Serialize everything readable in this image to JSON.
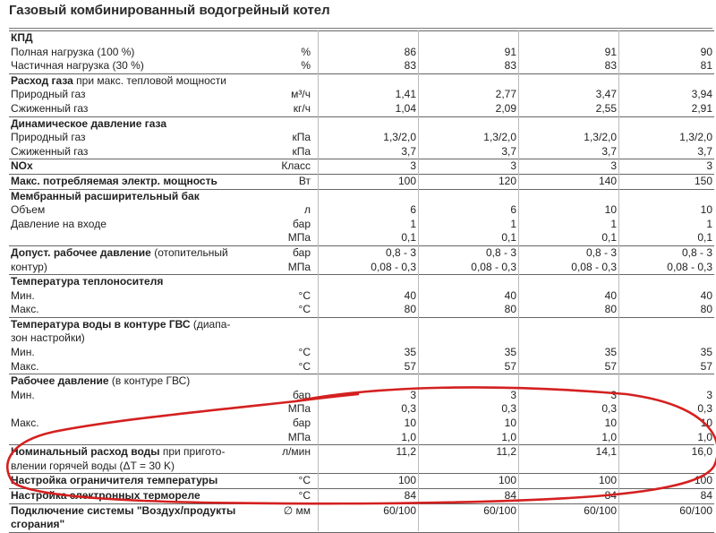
{
  "title": "Газовый комбинированный водогрейный котел",
  "sections": [
    {
      "rows": [
        {
          "label": "КПД",
          "bold": true
        },
        {
          "label": "Полная нагрузка (100 %)",
          "unit": "%",
          "values": [
            "86",
            "91",
            "91",
            "90"
          ]
        },
        {
          "label": "Частичная нагрузка (30 %)",
          "unit": "%",
          "values": [
            "83",
            "83",
            "83",
            "81"
          ]
        }
      ]
    },
    {
      "rows": [
        {
          "label": "Расход газа",
          "label_suffix": " при макс. тепловой мощности",
          "bold": true
        },
        {
          "label": "Природный газ",
          "unit": "м³/ч",
          "values": [
            "1,41",
            "2,77",
            "3,47",
            "3,94"
          ]
        },
        {
          "label": "Сжиженный газ",
          "unit": "кг/ч",
          "values": [
            "1,04",
            "2,09",
            "2,55",
            "2,91"
          ]
        }
      ]
    },
    {
      "rows": [
        {
          "label": "Динамическое давление газа",
          "bold": true
        },
        {
          "label": "Природный газ",
          "unit": "кПа",
          "values": [
            "1,3/2,0",
            "1,3/2,0",
            "1,3/2,0",
            "1,3/2,0"
          ]
        },
        {
          "label": "Сжиженный газ",
          "unit": "кПа",
          "values": [
            "3,7",
            "3,7",
            "3,7",
            "3,7"
          ]
        }
      ]
    },
    {
      "rows": [
        {
          "label": "NOx",
          "bold": true,
          "unit": "Класс",
          "values": [
            "3",
            "3",
            "3",
            "3"
          ]
        }
      ]
    },
    {
      "rows": [
        {
          "label": "Макс. потребляемая электр. мощность",
          "bold": true,
          "unit": "Вт",
          "values": [
            "100",
            "120",
            "140",
            "150"
          ]
        }
      ]
    },
    {
      "rows": [
        {
          "label": "Мембранный расширительный бак",
          "bold": true
        },
        {
          "label": "Объем",
          "unit": "л",
          "values": [
            "6",
            "6",
            "10",
            "10"
          ]
        },
        {
          "label": "Давление на входе",
          "unit": "бар",
          "values": [
            "1",
            "1",
            "1",
            "1"
          ]
        },
        {
          "label": "",
          "unit": "МПа",
          "values": [
            "0,1",
            "0,1",
            "0,1",
            "0,1"
          ]
        }
      ]
    },
    {
      "rows": [
        {
          "label": "Допуст. рабочее давление",
          "label_suffix": " (отопительный",
          "bold": true,
          "unit": "бар",
          "values": [
            "0,8 - 3",
            "0,8 - 3",
            "0,8 - 3",
            "0,8 - 3"
          ]
        },
        {
          "label": "контур)",
          "unit": "МПа",
          "values": [
            "0,08 - 0,3",
            "0,08 - 0,3",
            "0,08 - 0,3",
            "0,08 - 0,3"
          ]
        }
      ]
    },
    {
      "rows": [
        {
          "label": "Температура теплоносителя",
          "bold": true
        },
        {
          "label": "Мин.",
          "unit": "°C",
          "values": [
            "40",
            "40",
            "40",
            "40"
          ]
        },
        {
          "label": "Макс.",
          "unit": "°C",
          "values": [
            "80",
            "80",
            "80",
            "80"
          ]
        }
      ]
    },
    {
      "rows": [
        {
          "label": "Температура воды в контуре ГВС",
          "label_suffix": " (диапа-",
          "bold": true
        },
        {
          "label": "зон настройки)"
        },
        {
          "label": "Мин.",
          "unit": "°C",
          "values": [
            "35",
            "35",
            "35",
            "35"
          ]
        },
        {
          "label": "Макс.",
          "unit": "°C",
          "values": [
            "57",
            "57",
            "57",
            "57"
          ]
        }
      ]
    },
    {
      "rows": [
        {
          "label": "Рабочее давление",
          "label_suffix": " (в контуре ГВС)",
          "bold": true
        },
        {
          "label": "Мин.",
          "unit": "бар",
          "values": [
            "3",
            "3",
            "3",
            "3"
          ]
        },
        {
          "label": "",
          "unit": "МПа",
          "values": [
            "0,3",
            "0,3",
            "0,3",
            "0,3"
          ]
        },
        {
          "label": "Макс.",
          "unit": "бар",
          "values": [
            "10",
            "10",
            "10",
            "10"
          ]
        },
        {
          "label": "",
          "unit": "МПа",
          "values": [
            "1,0",
            "1,0",
            "1,0",
            "1,0"
          ]
        }
      ]
    },
    {
      "rows": [
        {
          "label": "Номинальный расход воды",
          "label_suffix": " при пригото-",
          "bold": true,
          "unit": "л/мин",
          "values": [
            "11,2",
            "11,2",
            "14,1",
            "16,0"
          ]
        },
        {
          "label": "влении горячей воды (ΔT = 30 K)"
        }
      ]
    },
    {
      "rows": [
        {
          "label": "Настройка ограничителя температуры",
          "bold": true,
          "unit": "°C",
          "values": [
            "100",
            "100",
            "100",
            "100"
          ]
        }
      ]
    },
    {
      "rows": [
        {
          "label": "Настройка электронных термореле",
          "bold": true,
          "unit": "°C",
          "values": [
            "84",
            "84",
            "84",
            "84"
          ]
        }
      ]
    },
    {
      "rows": [
        {
          "label": "Подключение системы \"Воздух/продукты",
          "bold": true,
          "unit": "∅ мм",
          "values": [
            "60/100",
            "60/100",
            "60/100",
            "60/100"
          ]
        },
        {
          "label": "сгорания\"",
          "bold": true
        }
      ]
    }
  ],
  "annotation_color": "#d42020"
}
